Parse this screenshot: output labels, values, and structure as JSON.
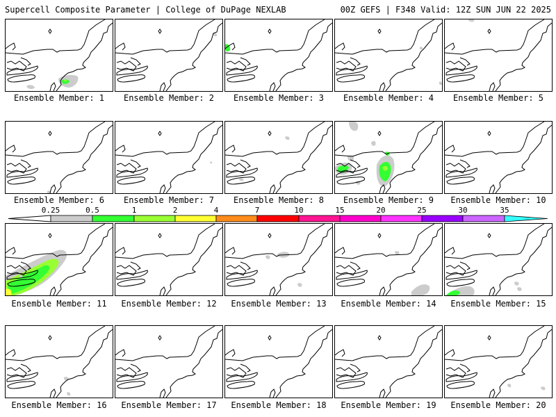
{
  "header": {
    "title_left": "Supercell Composite Parameter | College of DuPage NEXLAB",
    "title_right": "00Z GEFS | F348 Valid: 12Z SUN JUN 22 2025"
  },
  "colors": {
    "coast": "#000000",
    "light_gray": "#cccccc",
    "green": "#33ff33",
    "light_green": "#99ff33",
    "yellow": "#ffff33"
  },
  "legend": {
    "labels": [
      "0.25",
      "0.5",
      "1",
      "2",
      "4",
      "7",
      "10",
      "15",
      "20",
      "25",
      "30",
      "35"
    ],
    "colors": [
      "#cccccc",
      "#33ff33",
      "#99ff33",
      "#ffff33",
      "#ff8c1a",
      "#ff0000",
      "#ff1493",
      "#ff00cc",
      "#ff33ff",
      "#9900ff",
      "#cc66ff",
      "#33ffff"
    ]
  },
  "panels": [
    {
      "label": "Ensemble Member: 1"
    },
    {
      "label": "Ensemble Member: 2"
    },
    {
      "label": "Ensemble Member: 3"
    },
    {
      "label": "Ensemble Member: 4"
    },
    {
      "label": "Ensemble Member: 5"
    },
    {
      "label": "Ensemble Member: 6"
    },
    {
      "label": "Ensemble Member: 7"
    },
    {
      "label": "Ensemble Member: 8"
    },
    {
      "label": "Ensemble Member: 9"
    },
    {
      "label": "Ensemble Member: 10"
    },
    {
      "label": "Ensemble Member: 11"
    },
    {
      "label": "Ensemble Member: 12"
    },
    {
      "label": "Ensemble Member: 13"
    },
    {
      "label": "Ensemble Member: 14"
    },
    {
      "label": "Ensemble Member: 15"
    },
    {
      "label": "Ensemble Member: 16"
    },
    {
      "label": "Ensemble Member: 17"
    },
    {
      "label": "Ensemble Member: 18"
    },
    {
      "label": "Ensemble Member: 19"
    },
    {
      "label": "Ensemble Member: 20"
    }
  ]
}
